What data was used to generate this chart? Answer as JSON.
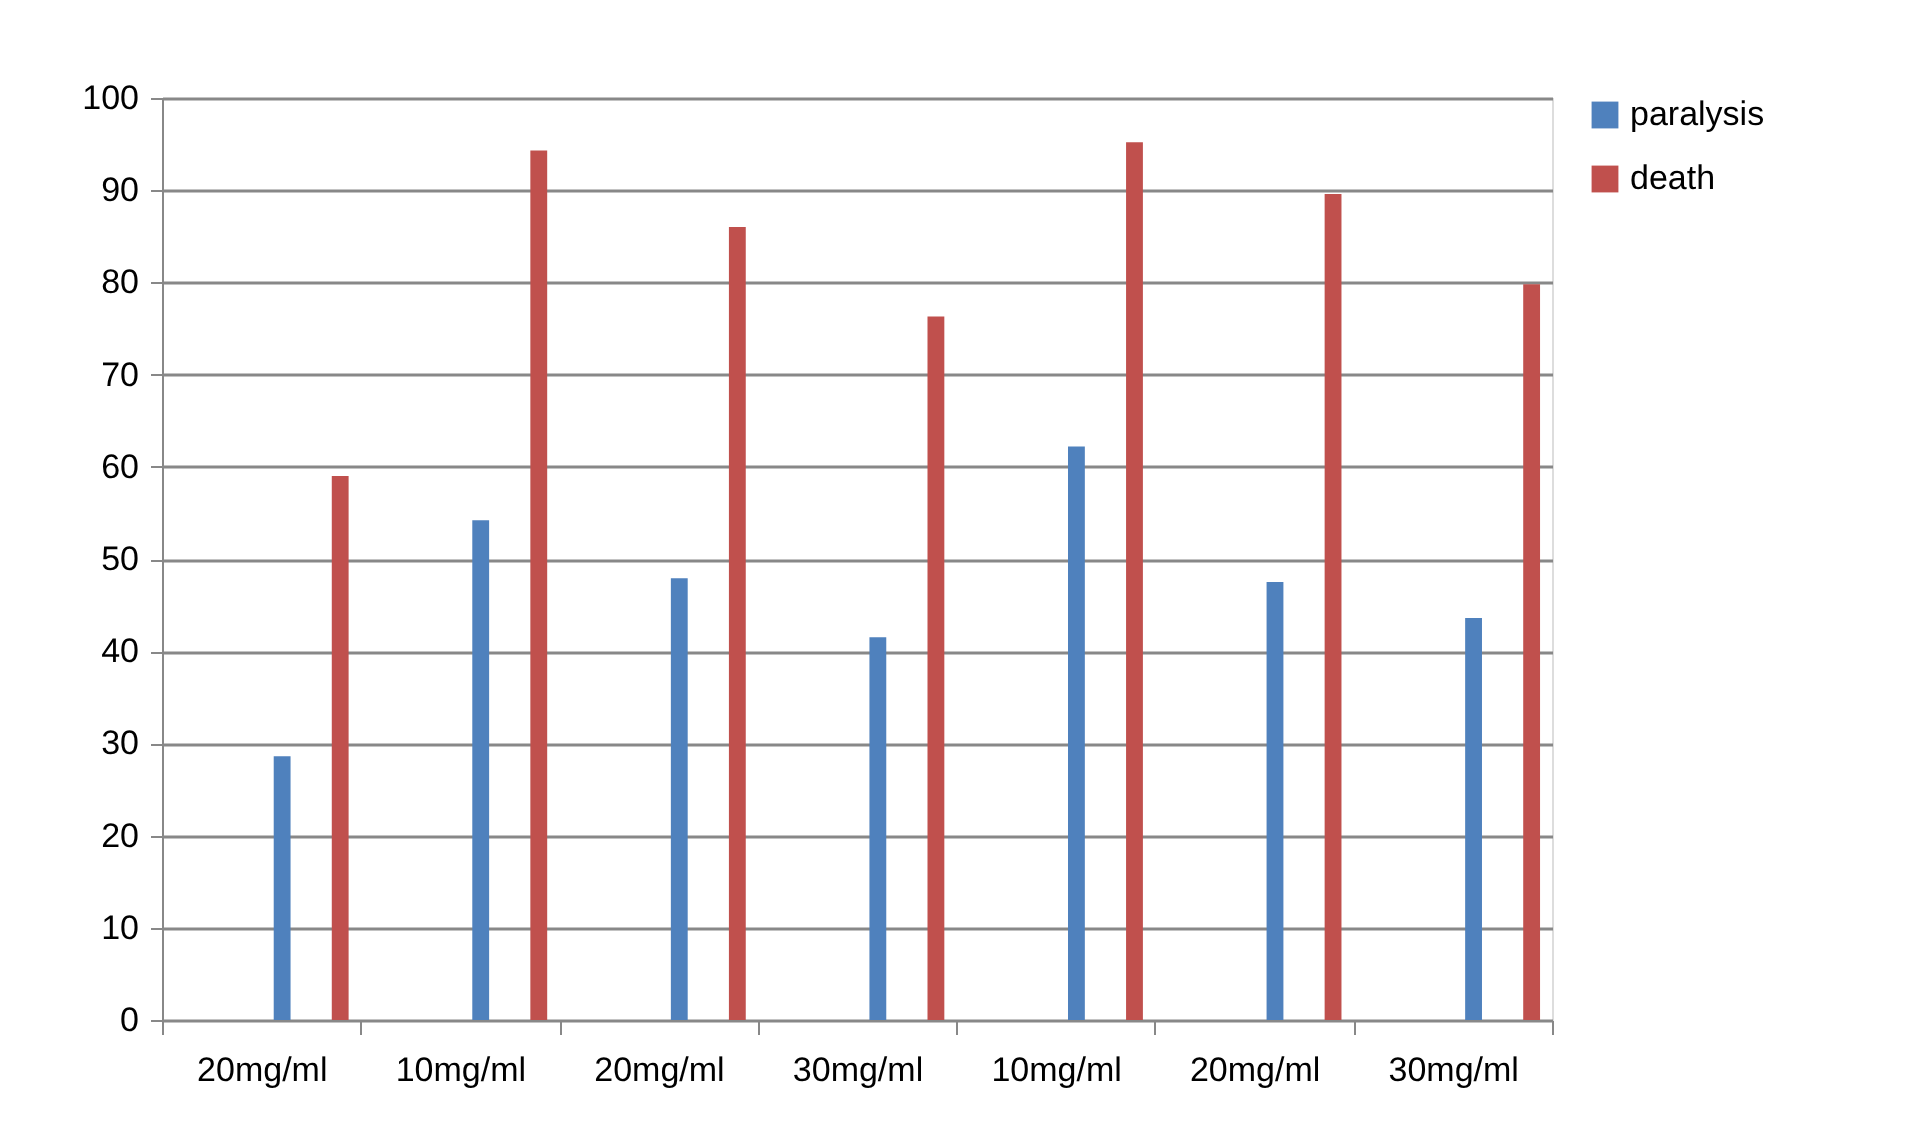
{
  "chart_data": {
    "type": "bar",
    "categories": [
      "20mg/ml",
      "10mg/ml",
      "20mg/ml",
      "30mg/ml",
      "10mg/ml",
      "20mg/ml",
      "30mg/ml"
    ],
    "series": [
      {
        "name": "paralysis",
        "color": "#4f81bd",
        "values": [
          28.6,
          54.2,
          47.9,
          41.5,
          62.2,
          47.5,
          43.6
        ]
      },
      {
        "name": "death",
        "color": "#c0504d",
        "values": [
          59.0,
          94.3,
          86.0,
          76.3,
          95.2,
          89.6,
          79.8
        ]
      }
    ],
    "ylim": [
      0,
      100
    ],
    "yticks": [
      0,
      10,
      20,
      30,
      40,
      50,
      60,
      70,
      80,
      90,
      100
    ],
    "grid": "y",
    "legend": "right"
  }
}
